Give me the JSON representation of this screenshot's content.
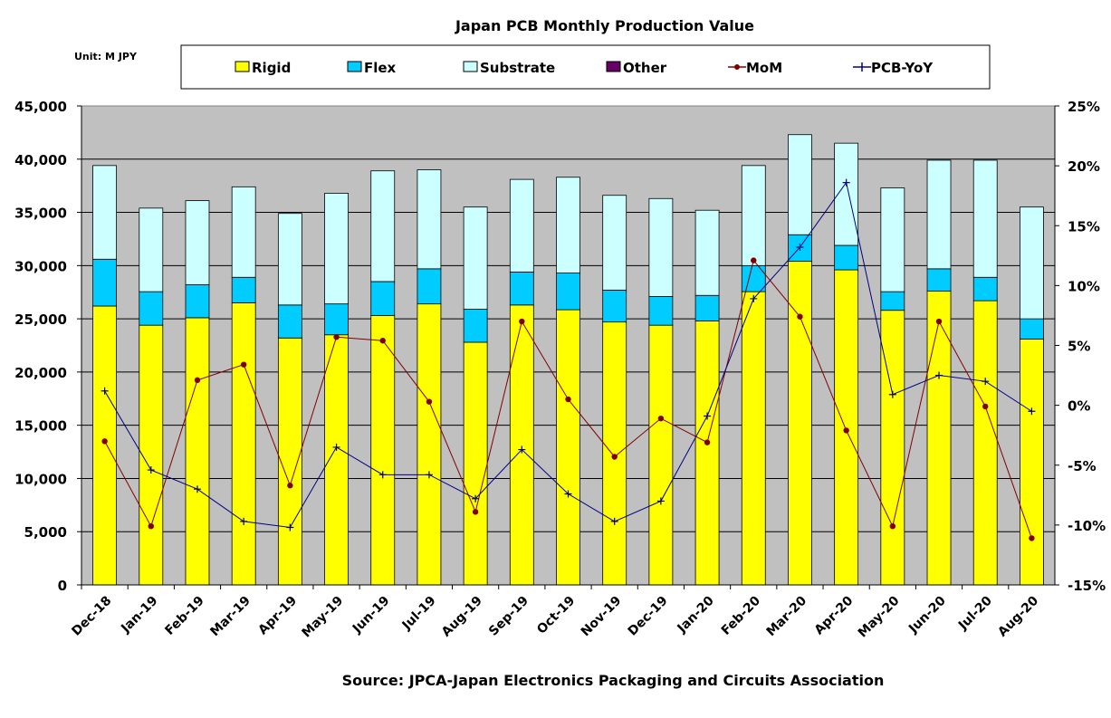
{
  "chart_data": {
    "type": "bar",
    "stacked": true,
    "title": "Japan PCB Monthly Production Value",
    "unit_label": "Unit: M JPY",
    "source": "Source: JPCA-Japan Electronics Packaging and Circuits Association",
    "categories": [
      "Dec-18",
      "Jan-19",
      "Feb-19",
      "Mar-19",
      "Apr-19",
      "May-19",
      "Jun-19",
      "Jul-19",
      "Aug-19",
      "Sep-19",
      "Oct-19",
      "Nov-19",
      "Dec-19",
      "Jan-20",
      "Feb-20",
      "Mar-20",
      "Apr-20",
      "May-20",
      "Jun-20",
      "Jul-20",
      "Aug-20"
    ],
    "y_left": {
      "min": 0,
      "max": 45000,
      "step": 5000,
      "ticks": [
        "0",
        "5,000",
        "10,000",
        "15,000",
        "20,000",
        "25,000",
        "30,000",
        "35,000",
        "40,000",
        "45,000"
      ]
    },
    "y_right": {
      "min": -15,
      "max": 25,
      "step": 5,
      "unit": "%",
      "ticks": [
        "-15%",
        "-10%",
        "-5%",
        "0%",
        "5%",
        "10%",
        "15%",
        "20%",
        "25%"
      ]
    },
    "grid": true,
    "plot_background": "#c0c0c0",
    "legend_position": "top",
    "series": [
      {
        "name": "Rigid",
        "kind": "bar",
        "color": "#ffff00",
        "values": [
          26200,
          24400,
          25100,
          26500,
          23200,
          23500,
          25300,
          26400,
          22800,
          26300,
          25850,
          24700,
          24400,
          24800,
          27550,
          30400,
          29600,
          25800,
          27600,
          26700,
          23100
        ]
      },
      {
        "name": "Flex",
        "kind": "bar",
        "color": "#00ccff",
        "values": [
          4400,
          3150,
          3100,
          2400,
          3100,
          2900,
          3200,
          3300,
          3100,
          3100,
          3450,
          3000,
          2700,
          2400,
          2450,
          2500,
          2300,
          1750,
          2100,
          2200,
          1900
        ]
      },
      {
        "name": "Substrate",
        "kind": "bar",
        "color": "#ccffff",
        "values": [
          8800,
          7850,
          7900,
          8500,
          8600,
          10400,
          10400,
          9300,
          9600,
          8700,
          9000,
          8900,
          9200,
          8000,
          9400,
          9400,
          9600,
          9750,
          10200,
          11000,
          10500
        ]
      },
      {
        "name": "Other",
        "kind": "bar",
        "color": "#660066",
        "values": [
          0,
          0,
          0,
          0,
          0,
          0,
          0,
          0,
          0,
          0,
          0,
          0,
          0,
          0,
          0,
          0,
          0,
          0,
          0,
          0,
          0
        ]
      },
      {
        "name": "MoM",
        "kind": "line",
        "axis": "right",
        "marker": "circle",
        "color": "#800000",
        "values": [
          -3.0,
          -10.1,
          2.1,
          3.4,
          -6.7,
          5.7,
          5.4,
          0.3,
          -8.9,
          7.0,
          0.5,
          -4.3,
          -1.1,
          -3.1,
          12.1,
          7.4,
          -2.1,
          -10.1,
          7.0,
          -0.1,
          -11.1
        ]
      },
      {
        "name": "PCB-YoY",
        "kind": "line",
        "axis": "right",
        "marker": "plus",
        "color": "#000080",
        "values": [
          1.2,
          -5.4,
          -7.0,
          -9.7,
          -10.2,
          -3.5,
          -5.8,
          -5.8,
          -7.8,
          -3.7,
          -7.4,
          -9.7,
          -8.0,
          -0.9,
          8.9,
          13.2,
          18.6,
          0.9,
          2.5,
          2.0,
          -0.5
        ]
      }
    ]
  }
}
